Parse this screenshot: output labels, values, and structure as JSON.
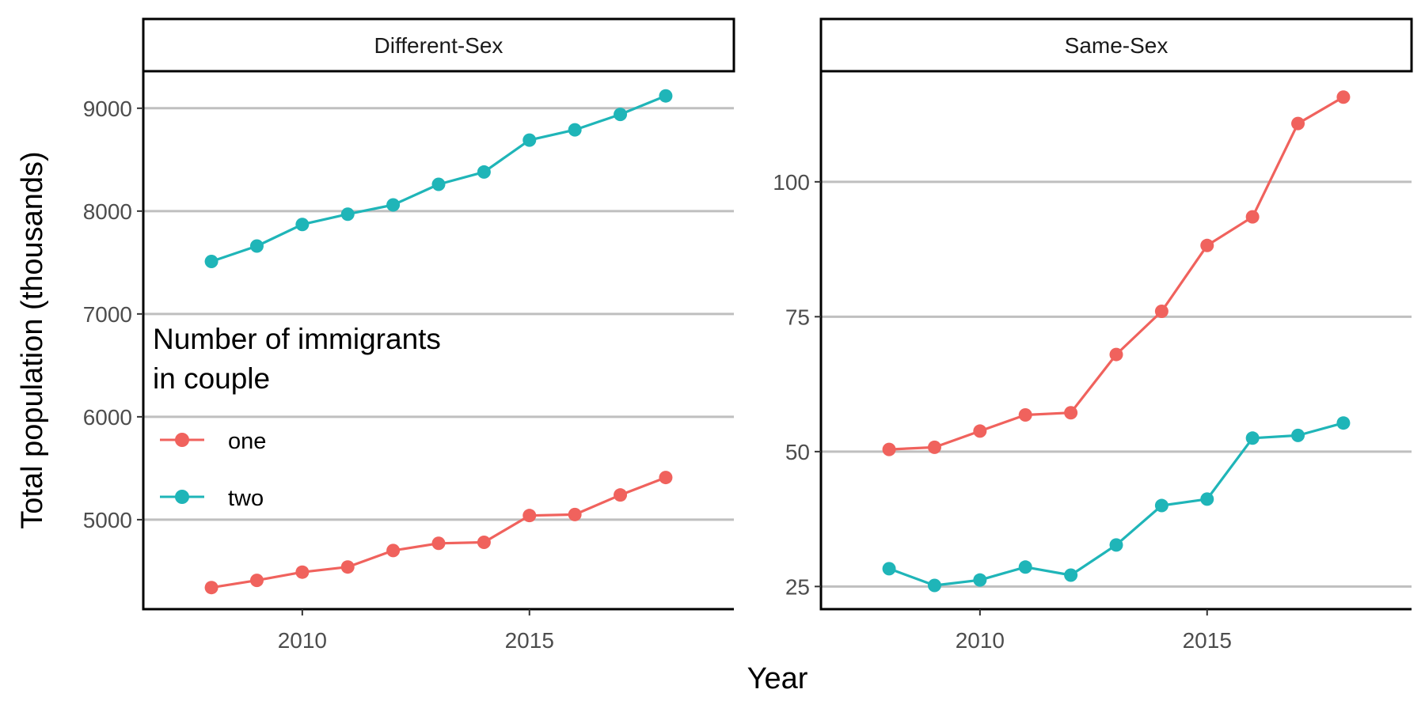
{
  "chart_data": {
    "type": "line",
    "xlabel": "Year",
    "ylabel": "Total population (thousands)",
    "legend": {
      "title_lines": [
        "Number of immigrants",
        "in couple"
      ],
      "placement": "inside-left",
      "entries": [
        {
          "label": "one",
          "color": "#F0625D"
        },
        {
          "label": "two",
          "color": "#1FB5B8"
        }
      ]
    },
    "grid": "major-y-only",
    "x_ticks": [
      2010,
      2015
    ],
    "x_ticks_text": [
      "2010",
      "2015"
    ],
    "xlim": [
      2006.5,
      2019.5
    ],
    "panels": [
      {
        "strip": "Different-Sex",
        "ylim": [
          4130,
          9360
        ],
        "y_ticks": [
          5000,
          6000,
          7000,
          8000,
          9000
        ],
        "y_ticks_text": [
          "5000",
          "6000",
          "7000",
          "8000",
          "9000"
        ],
        "series": [
          {
            "name": "one",
            "x": [
              2008,
              2009,
              2010,
              2011,
              2012,
              2013,
              2014,
              2015,
              2016,
              2017,
              2018
            ],
            "values": [
              4340,
              4410,
              4490,
              4540,
              4700,
              4770,
              4780,
              5040,
              5050,
              5240,
              5410
            ]
          },
          {
            "name": "two",
            "x": [
              2008,
              2009,
              2010,
              2011,
              2012,
              2013,
              2014,
              2015,
              2016,
              2017,
              2018
            ],
            "values": [
              7510,
              7660,
              7870,
              7970,
              8060,
              8260,
              8380,
              8690,
              8790,
              8940,
              9120
            ]
          }
        ]
      },
      {
        "strip": "Same-Sex",
        "ylim": [
          20.8,
          120.5
        ],
        "y_ticks": [
          25,
          50,
          75,
          100
        ],
        "y_ticks_text": [
          "25",
          "50",
          "75",
          "100"
        ],
        "series": [
          {
            "name": "one",
            "x": [
              2008,
              2009,
              2010,
              2011,
              2012,
              2013,
              2014,
              2015,
              2016,
              2017,
              2018
            ],
            "values": [
              50.4,
              50.8,
              53.8,
              56.8,
              57.2,
              68.0,
              76.0,
              88.2,
              93.5,
              110.8,
              115.7
            ]
          },
          {
            "name": "two",
            "x": [
              2008,
              2009,
              2010,
              2011,
              2012,
              2013,
              2014,
              2015,
              2016,
              2017,
              2018
            ],
            "values": [
              28.3,
              25.2,
              26.2,
              28.6,
              27.1,
              32.7,
              40.0,
              41.2,
              52.5,
              53.0,
              55.3
            ]
          }
        ]
      }
    ]
  }
}
